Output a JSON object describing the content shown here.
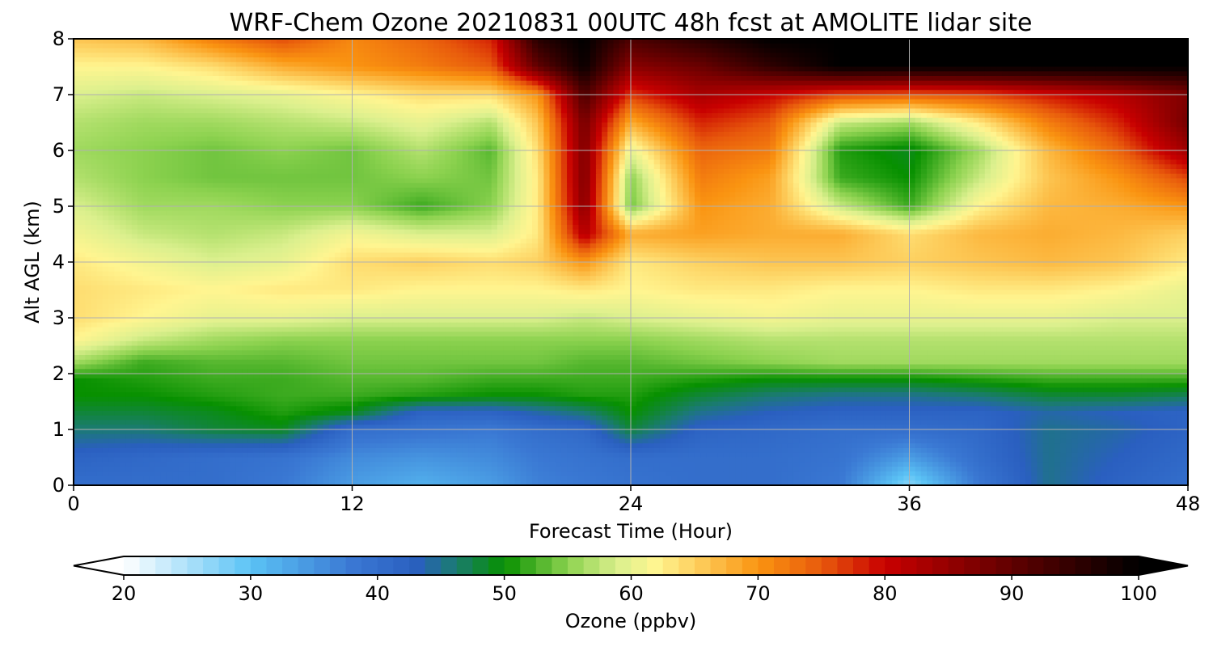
{
  "chart_data": {
    "type": "heatmap",
    "title": "WRF-Chem Ozone  20210831 00UTC 48h fcst at AMOLITE lidar site",
    "xlabel": "Forecast Time (Hour)",
    "ylabel": "Alt AGL (km)",
    "xlim": [
      0,
      48
    ],
    "ylim": [
      0,
      8
    ],
    "x_ticks": [
      0,
      12,
      24,
      36,
      48
    ],
    "y_ticks": [
      0,
      1,
      2,
      3,
      4,
      5,
      6,
      7,
      8
    ],
    "grid": true,
    "colorbar": {
      "label": "Ozone  (ppbv)",
      "min": 20,
      "max": 100,
      "ticks": [
        20,
        30,
        40,
        50,
        60,
        70,
        80,
        90,
        100
      ],
      "extend": "both",
      "orientation": "horizontal",
      "color_stops": [
        {
          "value": 20,
          "color": "#ffffff"
        },
        {
          "value": 30,
          "color": "#5bc3f5"
        },
        {
          "value": 38,
          "color": "#3a78d3"
        },
        {
          "value": 43,
          "color": "#2a5fc0"
        },
        {
          "value": 46,
          "color": "#1b7a74"
        },
        {
          "value": 50,
          "color": "#079000"
        },
        {
          "value": 55,
          "color": "#8cd24f"
        },
        {
          "value": 59,
          "color": "#dcf08e"
        },
        {
          "value": 62,
          "color": "#fff590"
        },
        {
          "value": 70,
          "color": "#fa9411"
        },
        {
          "value": 75,
          "color": "#e85a0c"
        },
        {
          "value": 80,
          "color": "#c80000"
        },
        {
          "value": 90,
          "color": "#600000"
        },
        {
          "value": 100,
          "color": "#000000"
        }
      ]
    },
    "z_grid": {
      "x": [
        0,
        3,
        6,
        9,
        12,
        15,
        18,
        20,
        22,
        24,
        27,
        30,
        33,
        36,
        39,
        42,
        45,
        48
      ],
      "y": [
        0,
        0.5,
        1,
        1.3,
        1.6,
        1.9,
        2.2,
        2.6,
        3,
        3.5,
        4,
        4.5,
        5,
        5.5,
        6,
        6.5,
        7,
        7.5,
        8
      ],
      "values": [
        [
          40,
          40,
          40,
          38,
          34,
          32,
          34,
          37,
          38,
          39,
          40,
          40,
          38,
          27,
          38,
          45,
          42,
          40
        ],
        [
          42,
          41,
          40,
          39,
          36,
          35,
          36,
          38,
          39,
          40,
          40,
          40,
          39,
          34,
          40,
          45,
          43,
          41
        ],
        [
          46,
          46,
          48,
          49,
          40,
          39,
          38,
          40,
          41,
          48,
          42,
          41,
          40,
          40,
          41,
          45,
          44,
          42
        ],
        [
          48,
          48,
          49,
          51,
          49,
          42,
          42,
          44,
          46,
          50,
          45,
          43,
          42,
          42,
          42,
          44,
          43,
          42
        ],
        [
          50,
          50,
          51,
          52,
          52,
          51,
          50,
          50,
          51,
          51,
          48,
          46,
          45,
          45,
          46,
          48,
          48,
          47
        ],
        [
          50,
          51,
          52,
          52,
          53,
          53,
          52,
          52,
          52,
          52,
          51,
          50,
          50,
          50,
          51,
          52,
          52,
          52
        ],
        [
          56,
          52,
          53,
          53,
          54,
          54,
          54,
          54,
          53,
          53,
          54,
          55,
          56,
          56,
          56,
          56,
          56,
          56
        ],
        [
          62,
          58,
          56,
          55,
          55,
          55,
          55,
          55,
          55,
          55,
          56,
          57,
          57,
          57,
          57,
          57,
          57,
          57
        ],
        [
          64,
          62,
          60,
          60,
          59,
          59,
          59,
          59,
          58,
          59,
          60,
          61,
          60,
          60,
          60,
          60,
          59,
          59
        ],
        [
          64,
          63,
          62,
          63,
          63,
          62,
          62,
          62,
          63,
          62,
          63,
          63,
          62,
          62,
          63,
          63,
          62,
          60
        ],
        [
          63,
          61,
          59,
          60,
          64,
          65,
          64,
          65,
          70,
          63,
          65,
          66,
          66,
          65,
          66,
          67,
          66,
          63
        ],
        [
          61,
          58,
          57,
          58,
          61,
          59,
          59,
          63,
          82,
          68,
          69,
          68,
          68,
          64,
          67,
          68,
          67,
          65
        ],
        [
          59,
          56,
          56,
          55,
          55,
          52,
          55,
          63,
          86,
          54,
          70,
          68,
          58,
          52,
          62,
          67,
          68,
          70
        ],
        [
          57,
          55,
          54,
          54,
          54,
          55,
          54,
          63,
          87,
          55,
          72,
          69,
          52,
          50,
          58,
          66,
          70,
          76
        ],
        [
          56,
          55,
          54,
          55,
          54,
          57,
          53,
          64,
          87,
          60,
          74,
          72,
          51,
          49,
          56,
          67,
          74,
          84
        ],
        [
          57,
          56,
          56,
          57,
          58,
          60,
          57,
          66,
          88,
          68,
          78,
          75,
          58,
          56,
          63,
          72,
          78,
          88
        ],
        [
          59,
          58,
          59,
          60,
          62,
          64,
          64,
          70,
          92,
          77,
          83,
          80,
          76,
          75,
          76,
          79,
          82,
          87
        ],
        [
          62,
          62,
          64,
          68,
          70,
          72,
          75,
          90,
          99,
          86,
          89,
          95,
          100,
          100,
          100,
          100,
          100,
          100
        ],
        [
          66,
          67,
          72,
          76,
          71,
          74,
          78,
          96,
          100,
          92,
          96,
          100,
          100,
          100,
          100,
          100,
          100,
          100
        ]
      ]
    }
  }
}
